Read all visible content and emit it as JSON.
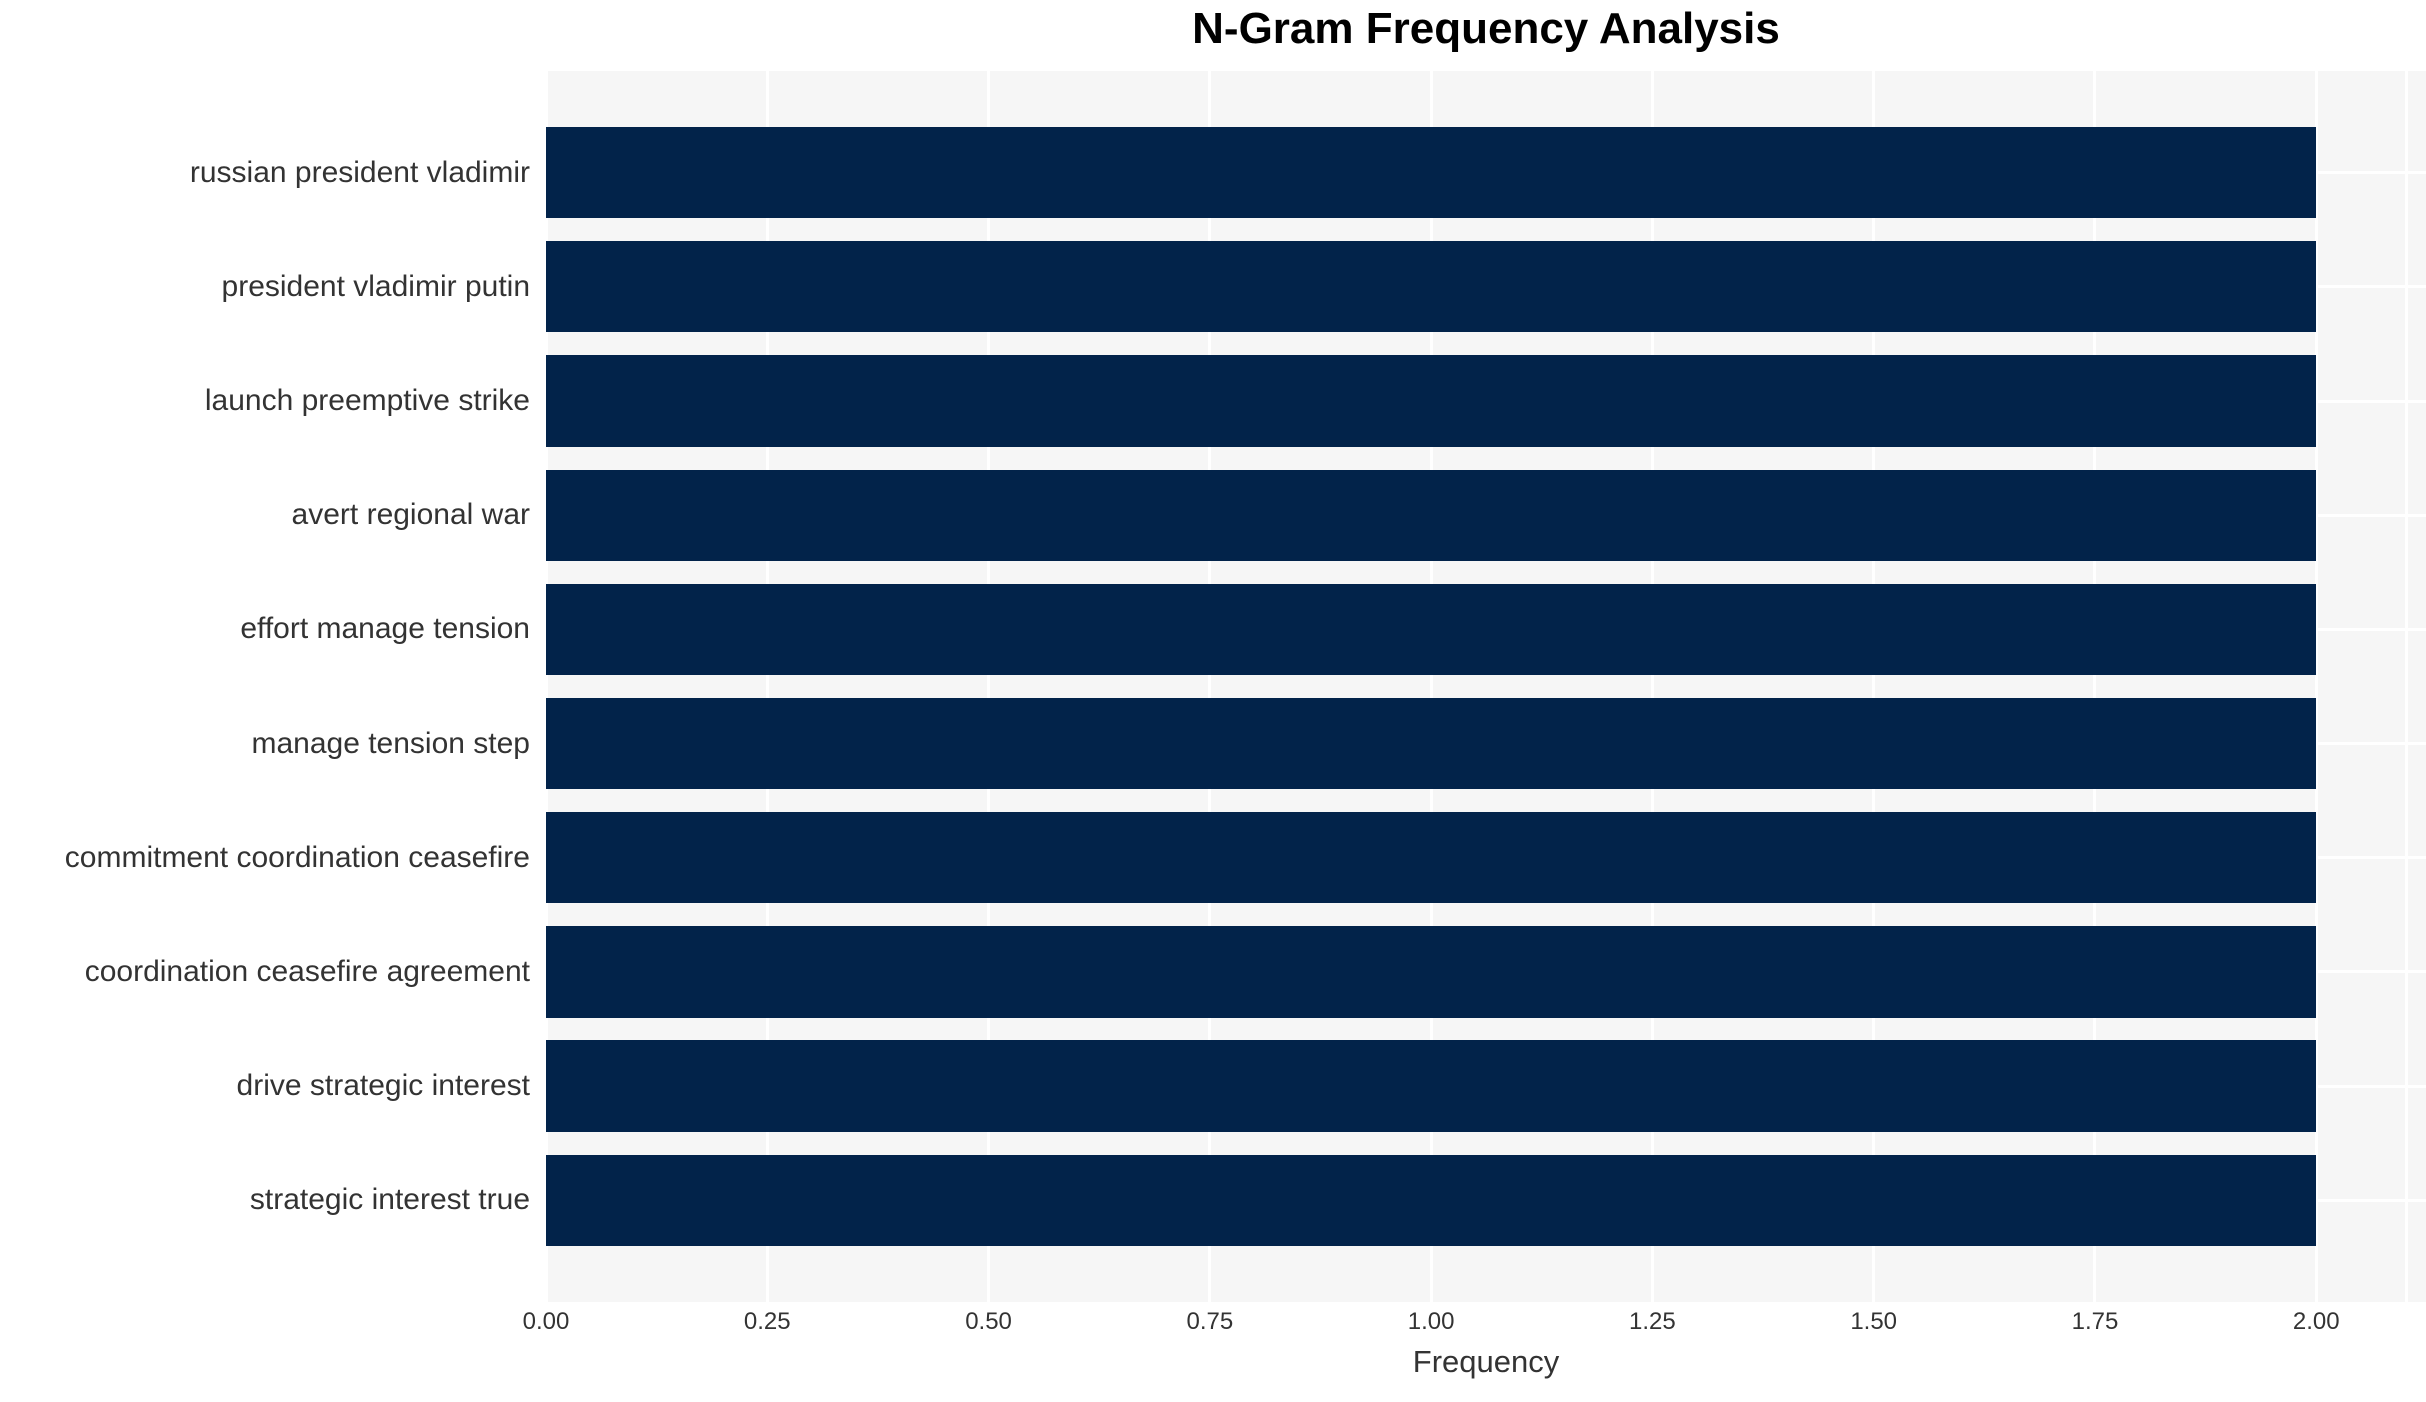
{
  "chart_data": {
    "type": "bar",
    "orientation": "horizontal",
    "title": "N-Gram Frequency Analysis",
    "xlabel": "Frequency",
    "ylabel": "",
    "categories": [
      "russian president vladimir",
      "president vladimir putin",
      "launch preemptive strike",
      "avert regional war",
      "effort manage tension",
      "manage tension step",
      "commitment coordination ceasefire",
      "coordination ceasefire agreement",
      "drive strategic interest",
      "strategic interest true"
    ],
    "values": [
      2,
      2,
      2,
      2,
      2,
      2,
      2,
      2,
      2,
      2
    ],
    "x_ticks": [
      {
        "value": 0.0,
        "label": "0.00"
      },
      {
        "value": 0.25,
        "label": "0.25"
      },
      {
        "value": 0.5,
        "label": "0.50"
      },
      {
        "value": 0.75,
        "label": "0.75"
      },
      {
        "value": 1.0,
        "label": "1.00"
      },
      {
        "value": 1.25,
        "label": "1.25"
      },
      {
        "value": 1.5,
        "label": "1.50"
      },
      {
        "value": 1.75,
        "label": "1.75"
      },
      {
        "value": 2.0,
        "label": "2.00"
      }
    ],
    "xlim": [
      0,
      2.124
    ],
    "bar_height_fraction": 0.8,
    "grid": {
      "vertical": true,
      "horizontal": true,
      "on": true
    },
    "legend": "none",
    "colors": {
      "bar": "#02234a",
      "plot_background": "#f6f6f6",
      "figure_background": "#ffffff",
      "gridline": "#ffffff",
      "tick_text": "#333333",
      "title_text": "#000000"
    }
  }
}
